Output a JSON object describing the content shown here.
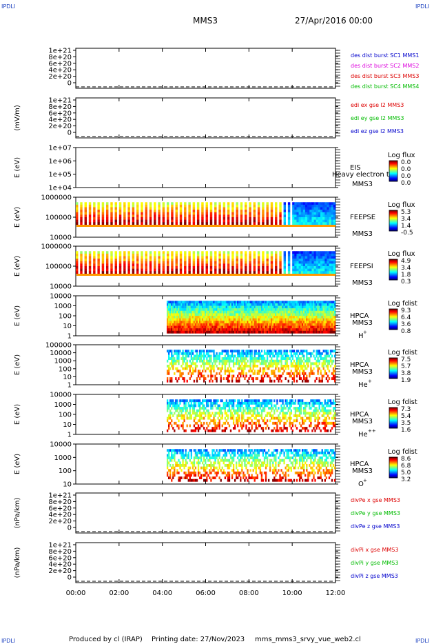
{
  "header": {
    "corner_tl": "IPDLI",
    "corner_tr": "IPDLI",
    "corner_bl": "IPDLI",
    "corner_br": "IPDLI",
    "spacecraft": "MMS3",
    "date": "27/Apr/2016 00:00"
  },
  "footer": {
    "producer": "Produced by cl (IRAP)",
    "printing": "Printing date: 27/Nov/2023",
    "script": "mms_mms3_srvy_vue_web2.cl"
  },
  "colors": {
    "blue": "#0000cc",
    "magenta": "#dd00dd",
    "red": "#dd0000",
    "green": "#00bb00"
  },
  "chart_data": {
    "type": "heatmap",
    "x_ticks": [
      "00:00",
      "02:00",
      "04:00",
      "06:00",
      "08:00",
      "10:00",
      "12:00"
    ],
    "xlim_hours": [
      0,
      12
    ],
    "panels": [
      {
        "id": "des",
        "kind": "line",
        "ylabel": "",
        "ylim": [
          0,
          1e+21
        ],
        "yticks": [
          "1e+21",
          "8e+20",
          "6e+20",
          "4e+20",
          "2e+20",
          "0"
        ],
        "legend": [
          {
            "text": "des dist burst SC1 MMS1",
            "color": "blue"
          },
          {
            "text": "des dist burst SC2 MMS2",
            "color": "magenta"
          },
          {
            "text": "des dist burst SC3 MMS3",
            "color": "red"
          },
          {
            "text": "des dist burst SC4 MMS4",
            "color": "green"
          }
        ]
      },
      {
        "id": "edi",
        "kind": "line",
        "ylabel": "(mV/m)",
        "ylim": [
          0,
          1e+21
        ],
        "yticks": [
          "1e+21",
          "8e+20",
          "6e+20",
          "4e+20",
          "2e+20",
          "0"
        ],
        "legend": [
          {
            "text": "edi ex gse l2 MMS3",
            "color": "red"
          },
          {
            "text": "edi ey gse l2 MMS3",
            "color": "green"
          },
          {
            "text": "edi ez gse l2 MMS3",
            "color": "blue"
          }
        ]
      },
      {
        "id": "eis",
        "kind": "spec",
        "ylabel": "E (eV)",
        "yticks": [
          "1e+07",
          "1e+06",
          "1e+05",
          "1e+04"
        ],
        "inst": "EIS",
        "sc": "MMS3",
        "overlay": "Heavy electron to",
        "cb_title": "Log flux",
        "cb_ticks": [
          "0.0",
          "0.0",
          "0.0",
          "0.0"
        ],
        "coverage": []
      },
      {
        "id": "feepse",
        "kind": "spec",
        "ylabel": "E (eV)",
        "yticks": [
          "1000000",
          "100000",
          "10000"
        ],
        "inst": "FEEPSE",
        "sc": "MMS3",
        "cb_title": "Log flux",
        "cb_ticks": [
          "5.3",
          "3.4",
          "1.4",
          "-0.5"
        ],
        "coverage": [
          0,
          12
        ]
      },
      {
        "id": "feepsi",
        "kind": "spec",
        "ylabel": "E (eV)",
        "yticks": [
          "1000000",
          "100000",
          "10000"
        ],
        "inst": "FEEPSI",
        "sc": "MMS3",
        "cb_title": "Log flux",
        "cb_ticks": [
          "4.9",
          "3.4",
          "1.8",
          "0.3"
        ],
        "coverage": [
          0,
          12
        ]
      },
      {
        "id": "hpca_h",
        "kind": "spec",
        "ylabel": "E (eV)",
        "yticks": [
          "10000",
          "1000",
          "100",
          "10",
          "1"
        ],
        "inst": "HPCA",
        "sc": "MMS3",
        "species": "H",
        "charge": "+",
        "cb_title": "Log fdist",
        "cb_ticks": [
          "9.3",
          "6.4",
          "3.6",
          "0.8"
        ],
        "coverage": [
          4.2,
          12
        ]
      },
      {
        "id": "hpca_he1",
        "kind": "spec",
        "ylabel": "E (eV)",
        "yticks": [
          "100000",
          "10000",
          "1000",
          "100",
          "10",
          "1"
        ],
        "inst": "HPCA",
        "sc": "MMS3",
        "species": "He",
        "charge": "+",
        "cb_title": "Log fdist",
        "cb_ticks": [
          "7.5",
          "5.7",
          "3.8",
          "1.9"
        ],
        "coverage": [
          4.2,
          12
        ]
      },
      {
        "id": "hpca_he2",
        "kind": "spec",
        "ylabel": "E (eV)",
        "yticks": [
          "10000",
          "1000",
          "100",
          "10",
          "1"
        ],
        "inst": "HPCA",
        "sc": "MMS3",
        "species": "He",
        "charge": "++",
        "cb_title": "Log fdist",
        "cb_ticks": [
          "7.3",
          "5.4",
          "3.5",
          "1.6"
        ],
        "coverage": [
          4.2,
          12
        ]
      },
      {
        "id": "hpca_o",
        "kind": "spec",
        "ylabel": "E (eV)",
        "yticks": [
          "10000",
          "1000",
          "100",
          "10"
        ],
        "inst": "HPCA",
        "sc": "MMS3",
        "species": "O",
        "charge": "+",
        "cb_title": "Log fdist",
        "cb_ticks": [
          "8.6",
          "6.8",
          "5.0",
          "3.2"
        ],
        "coverage": [
          4.2,
          12
        ]
      },
      {
        "id": "divpe",
        "kind": "line",
        "ylabel": "(nPa/km)",
        "ylim": [
          0,
          1e+21
        ],
        "yticks": [
          "1e+21",
          "8e+20",
          "6e+20",
          "4e+20",
          "2e+20",
          "0"
        ],
        "legend": [
          {
            "text": "divPe x gse MMS3",
            "color": "red"
          },
          {
            "text": "divPe y gse MMS3",
            "color": "green"
          },
          {
            "text": "divPe z gse MMS3",
            "color": "blue"
          }
        ]
      },
      {
        "id": "divpi",
        "kind": "line",
        "ylabel": "(nPa/km)",
        "ylim": [
          0,
          1e+21
        ],
        "yticks": [
          "1e+21",
          "8e+20",
          "6e+20",
          "4e+20",
          "2e+20",
          "0"
        ],
        "legend": [
          {
            "text": "divPi x gse MMS3",
            "color": "red"
          },
          {
            "text": "divPi y gse MMS3",
            "color": "green"
          },
          {
            "text": "divPi z gse MMS3",
            "color": "blue"
          }
        ]
      }
    ]
  }
}
